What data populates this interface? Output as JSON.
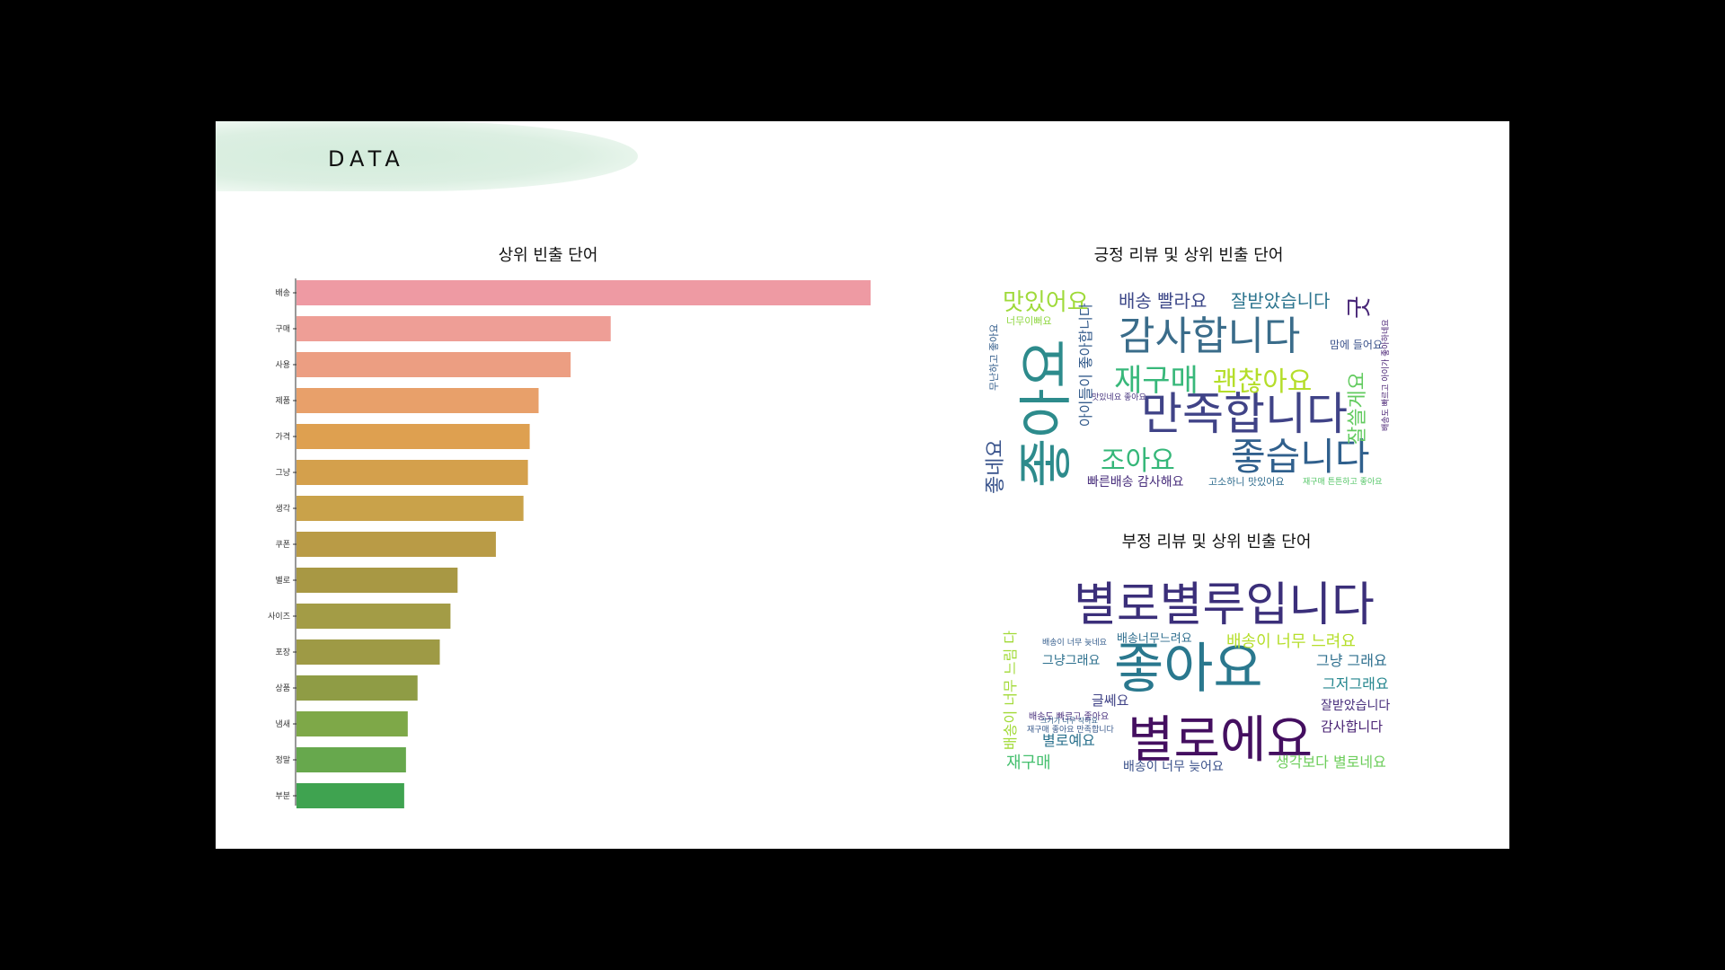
{
  "slide": {
    "title": "DATA"
  },
  "chart_data": {
    "type": "bar",
    "orientation": "horizontal",
    "title": "상위 빈출 단어",
    "categories": [
      "배송",
      "구매",
      "사용",
      "제품",
      "가격",
      "그냥",
      "생각",
      "쿠폰",
      "별로",
      "사이즈",
      "포장",
      "상품",
      "냄새",
      "정말",
      "부분"
    ],
    "values": [
      645,
      353,
      308,
      272,
      262,
      260,
      255,
      224,
      181,
      173,
      161,
      136,
      125,
      123,
      121
    ],
    "xlim": [
      0,
      650
    ],
    "grid": false,
    "colors": [
      "#ee9aa3",
      "#ee9e96",
      "#ec9e82",
      "#e8a06a",
      "#dea050",
      "#d4a04c",
      "#c9a24a",
      "#b99b46",
      "#a89844",
      "#a39c46",
      "#9e9a45",
      "#8f9c45",
      "#7ea848",
      "#67a84d",
      "#3fa350"
    ]
  },
  "wordclouds": {
    "positive": {
      "title": "긍정 리뷰 및 상위 빈출 단어",
      "words": [
        {
          "text": "좋아요",
          "color": "#2d8b8c"
        },
        {
          "text": "감사합니다",
          "color": "#3a6c8a"
        },
        {
          "text": "만족합니다",
          "color": "#404387"
        },
        {
          "text": "좋습니다",
          "color": "#30608d"
        },
        {
          "text": "재구매",
          "color": "#38b87a"
        },
        {
          "text": "괜찮아요",
          "color": "#b5de2b"
        },
        {
          "text": "조아요",
          "color": "#35b779"
        },
        {
          "text": "맛있어요",
          "color": "#9fda3a"
        },
        {
          "text": "배송 빨라요",
          "color": "#3e4989"
        },
        {
          "text": "잘받았습니다",
          "color": "#2b748e"
        },
        {
          "text": "굿",
          "color": "#482677"
        },
        {
          "text": "좋네요",
          "color": "#3a548c"
        },
        {
          "text": "아이들이 좋아합니다",
          "color": "#365d8d"
        },
        {
          "text": "잘쓸게요",
          "color": "#62cb5f"
        },
        {
          "text": "빠른배송 감사해요",
          "color": "#472d7b"
        },
        {
          "text": "너무이뻐요",
          "color": "#90d743"
        },
        {
          "text": "맛있네요 좋아요",
          "color": "#46337e"
        },
        {
          "text": "고소하니 맛있어요",
          "color": "#2f6c8e"
        },
        {
          "text": "무난하고 좋아요",
          "color": "#355f8d"
        },
        {
          "text": "재구매 튼튼하고 좋아요",
          "color": "#55c667"
        },
        {
          "text": "배송도 빠르고 아이가 좋아하네요",
          "color": "#482173"
        },
        {
          "text": "맘에 들어요",
          "color": "#3b528b"
        }
      ]
    },
    "negative": {
      "title": "부정 리뷰 및 상위 빈출 단어",
      "words": [
        {
          "text": "별로별루입니다",
          "color": "#3b2f7a"
        },
        {
          "text": "좋아요",
          "color": "#2a788e"
        },
        {
          "text": "별로에요",
          "color": "#440f60"
        },
        {
          "text": "배송이 너무 느려요",
          "color": "#b5de2b"
        },
        {
          "text": "그냥 그래요",
          "color": "#2e6f8e"
        },
        {
          "text": "그저그래요",
          "color": "#24868e"
        },
        {
          "text": "잘받았습니다",
          "color": "#472d7b"
        },
        {
          "text": "감사합니다",
          "color": "#482173"
        },
        {
          "text": "생각보다 별로네요",
          "color": "#6ccd5a"
        },
        {
          "text": "배송이 너무 늦어요",
          "color": "#3b528b"
        },
        {
          "text": "재구매",
          "color": "#46c06f"
        },
        {
          "text": "별로예요",
          "color": "#2c728e"
        },
        {
          "text": "글쎄요",
          "color": "#404387"
        },
        {
          "text": "그냥그래요",
          "color": "#2d708e"
        },
        {
          "text": "배송너무느려요",
          "color": "#2e6e8e"
        },
        {
          "text": "배송이 너무 느림 다",
          "color": "#a2da37"
        },
        {
          "text": "배송도 빠르고 좋아요",
          "color": "#472e7c"
        },
        {
          "text": "재구매 좋아요 만족합니다",
          "color": "#38598c"
        },
        {
          "text": "배송이 너무 늦네요",
          "color": "#355e8d"
        },
        {
          "text": "크기가 너무 작아요",
          "color": "#34618d"
        }
      ]
    }
  }
}
